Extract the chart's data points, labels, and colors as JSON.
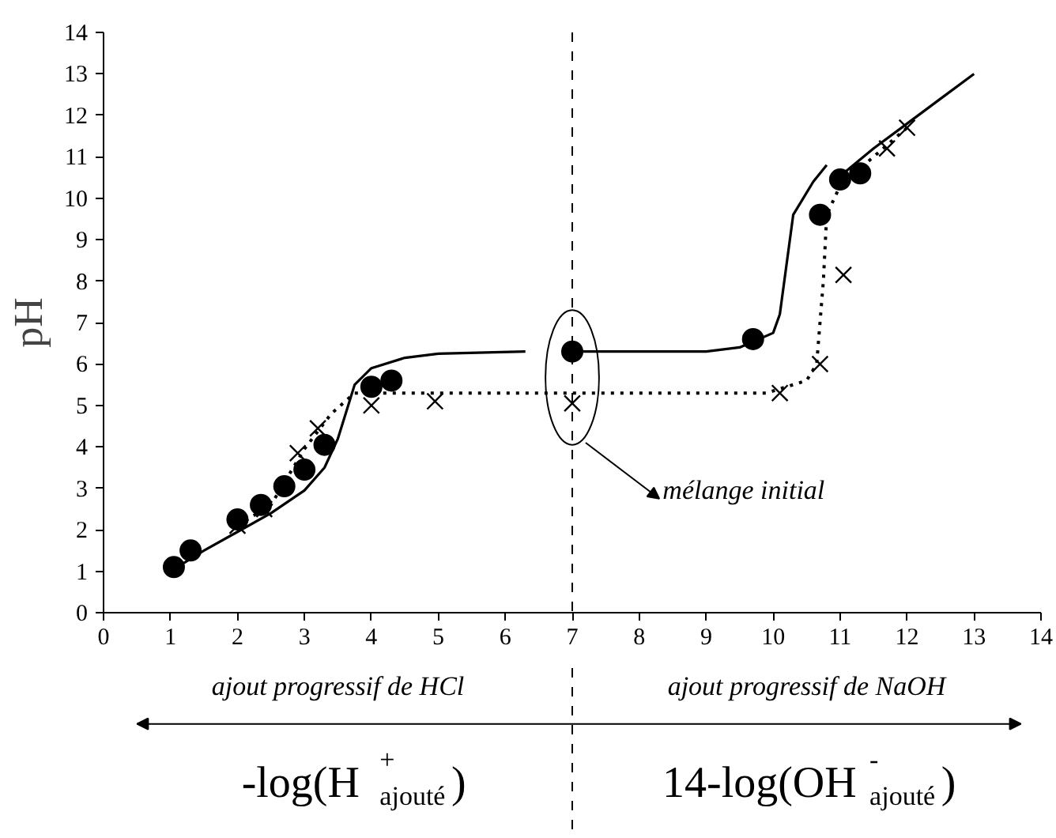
{
  "chart_data": {
    "type": "scatter",
    "ylabel": "pH",
    "xlim": [
      0,
      14
    ],
    "ylim": [
      0,
      14
    ],
    "xticks": [
      0,
      1,
      2,
      3,
      4,
      5,
      6,
      7,
      8,
      9,
      10,
      11,
      12,
      13,
      14
    ],
    "yticks": [
      0,
      1,
      2,
      3,
      4,
      5,
      6,
      7,
      8,
      9,
      10,
      11,
      12,
      13,
      14
    ],
    "grid": false,
    "series": [
      {
        "marker": "circle",
        "color": "#000000",
        "x": [
          1.05,
          1.3,
          2.0,
          2.35,
          2.7,
          3.0,
          3.3,
          4.0,
          4.3,
          7.0,
          9.7,
          10.7,
          11.0,
          11.3
        ],
        "values": [
          1.1,
          1.5,
          2.25,
          2.6,
          3.05,
          3.45,
          4.05,
          5.45,
          5.6,
          6.3,
          6.6,
          9.6,
          10.45,
          10.6
        ]
      },
      {
        "marker": "cross",
        "color": "#000000",
        "x": [
          2.0,
          2.4,
          2.9,
          3.2,
          4.0,
          4.95,
          7.0,
          10.1,
          10.7,
          11.05,
          11.7,
          12.0
        ],
        "values": [
          2.1,
          2.5,
          3.85,
          4.45,
          5.0,
          5.1,
          5.05,
          5.3,
          6.0,
          8.15,
          11.2,
          11.7
        ]
      },
      {
        "type": "line",
        "line_style": "solid",
        "color": "#000000",
        "x": [
          1.1,
          1.5,
          2.0,
          2.5,
          3.0,
          3.3,
          3.5,
          3.75,
          4.0,
          4.5,
          5.0,
          6.3,
          6.65,
          7.0,
          9.0,
          9.5,
          10.0,
          10.1,
          10.3,
          10.6,
          10.8,
          10.85,
          10.9,
          11.5,
          12.0,
          12.5,
          13.0
        ],
        "values": [
          1.1,
          1.5,
          1.95,
          2.4,
          2.95,
          3.5,
          4.2,
          5.5,
          5.9,
          6.15,
          6.25,
          6.3,
          null,
          6.3,
          6.3,
          6.4,
          6.75,
          7.2,
          9.6,
          10.4,
          10.8,
          null,
          10.4,
          11.2,
          11.8,
          12.4,
          13.0
        ]
      },
      {
        "type": "line",
        "line_style": "dotted",
        "color": "#000000",
        "x": [
          2.0,
          2.5,
          3.0,
          3.4,
          3.75,
          4.5,
          7.0,
          9.9,
          10.5,
          10.65,
          10.75,
          10.8,
          11.0,
          11.5,
          12.0
        ],
        "values": [
          2.1,
          2.6,
          3.95,
          4.8,
          5.3,
          5.3,
          5.3,
          5.3,
          5.6,
          6.0,
          8.0,
          9.6,
          10.3,
          11.0,
          11.7
        ]
      }
    ],
    "ref_lines": [
      {
        "axis": "x",
        "value": 7,
        "line_style": "dashed"
      }
    ],
    "annotations": [
      "mélange initial",
      "ajout progressif de HCl",
      "ajout progressif de NaOH",
      "-log(H$^{+}$$_{ajouté}$)",
      "14-log(OH$^{-}$$_{ajouté}$)"
    ]
  }
}
